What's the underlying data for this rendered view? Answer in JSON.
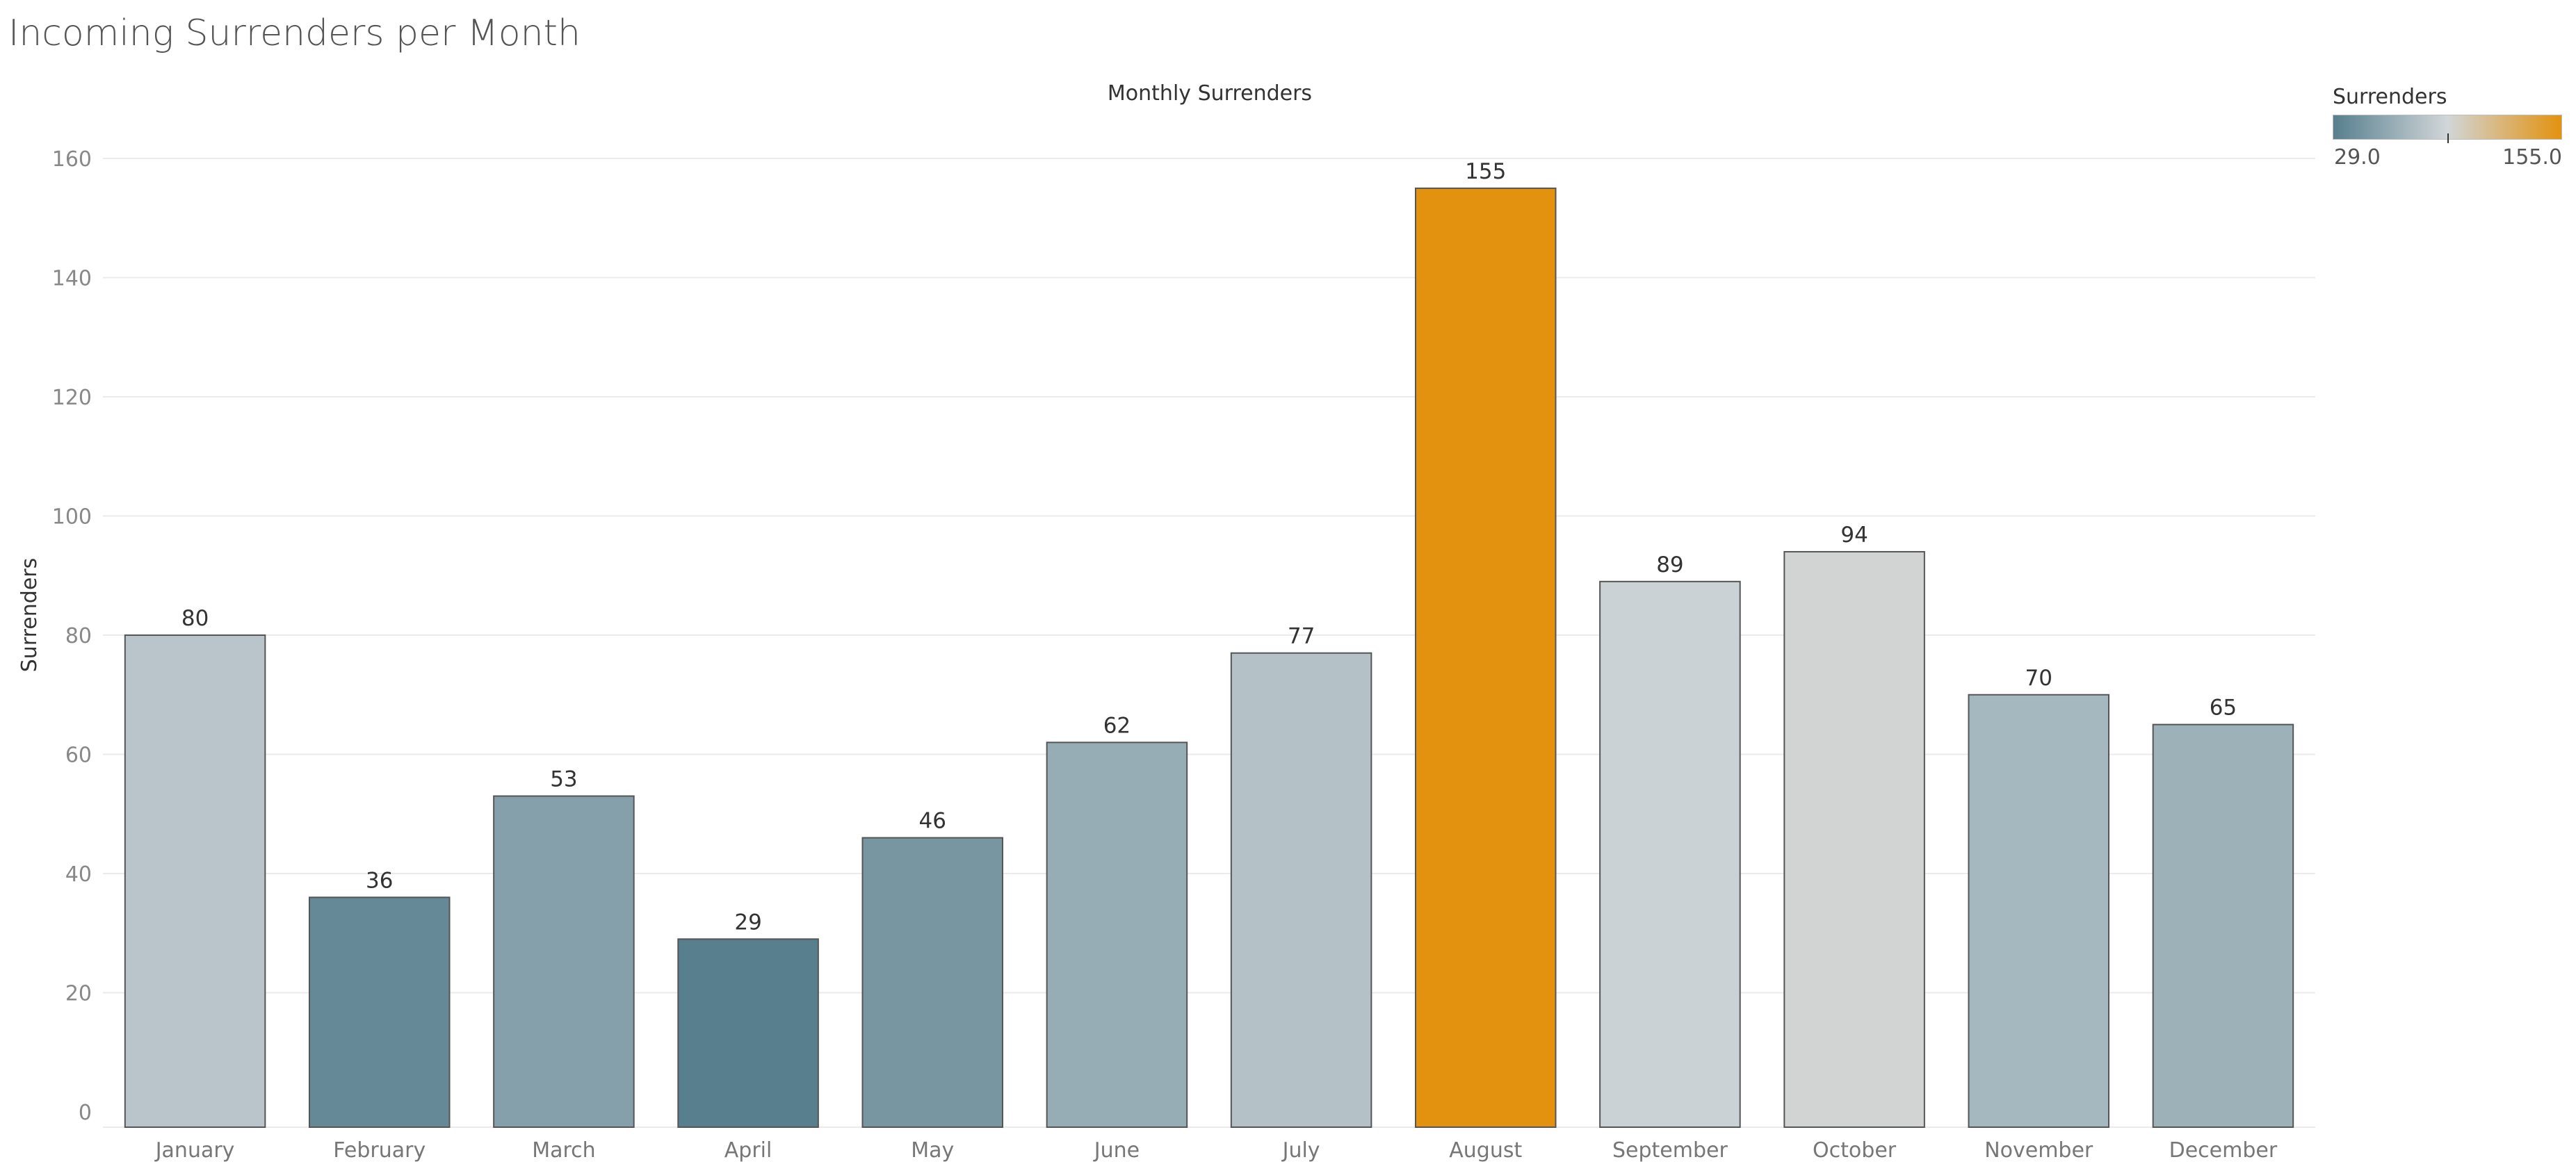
{
  "page": {
    "title": "Incoming Surrenders per Month"
  },
  "chart_data": {
    "type": "bar",
    "title": "Monthly Surrenders",
    "xlabel": "",
    "ylabel": "Surrenders",
    "categories": [
      "January",
      "February",
      "March",
      "April",
      "May",
      "June",
      "July",
      "August",
      "September",
      "October",
      "November",
      "December"
    ],
    "values": [
      80,
      36,
      53,
      29,
      46,
      62,
      77,
      155,
      89,
      94,
      70,
      65
    ],
    "ylim": [
      0,
      160
    ],
    "yticks": [
      0,
      20,
      40,
      60,
      80,
      100,
      120,
      140,
      160
    ],
    "grid": true,
    "data_labels": true,
    "legend": {
      "title": "Surrenders",
      "placement": "top-right",
      "min_label": "29.0",
      "max_label": "155.0",
      "min": 29,
      "max": 155,
      "midpoint": 92
    },
    "colors": {
      "low": "#577f8e",
      "mid": "#d1d6d9",
      "high": "#e3920f",
      "bar_outline": "#555555",
      "gridline": "#ebebeb"
    }
  }
}
